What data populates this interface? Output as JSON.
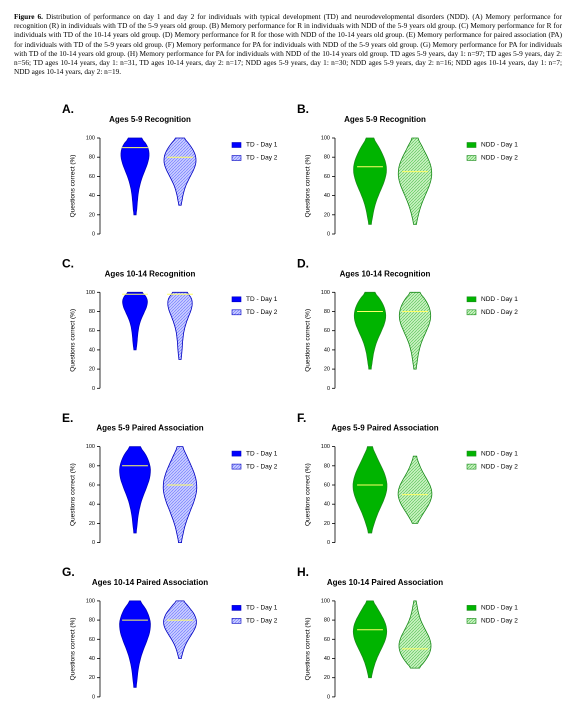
{
  "caption_label": "Figure 6.",
  "caption": "Distribution of performance on day 1 and day 2 for individuals with typical development (TD) and neurodevelopmental disorders (NDD). (A) Memory performance for recognition (R) in individuals with TD of the 5-9 years old group. (B) Memory performance for R in individuals with NDD of the 5-9 years old group. (C) Memory performance for R for individuals with TD of the 10-14 years old group. (D) Memory performance for R for those with NDD of the 10-14 years old group. (E) Memory performance for paired association (PA) for individuals with TD of the 5-9 years old group. (F) Memory performance for PA for individuals with NDD of the 5-9 years old group. (G) Memory performance for PA for individuals with TD of the 10-14 years old group. (H) Memory performance for PA for individuals with NDD of the 10-14 years old group. TD ages 5-9 years, day 1: n=97; TD ages 5-9 years, day 2: n=56; TD ages 10-14 years, day 1: n=31, TD ages 10-14 years, day 2: n=17; NDD ages 5-9 years, day 1: n=30; NDD ages 5-9 years, day 2: n=16; NDD ages 10-14 years, day 1: n=7; NDD ages 10-14 years, day 2: n=19.",
  "chart_data": [
    {
      "panel": "A.",
      "type": "violin",
      "title": "Ages 5-9 Recognition",
      "y_label": "Questions correct (%)",
      "ylim": [
        0,
        100
      ],
      "yticks": [
        0,
        20,
        40,
        60,
        80,
        100
      ],
      "series": [
        {
          "name": "TD - Day 1",
          "color": "#0000ff",
          "min": 20,
          "median": 90,
          "max": 100
        },
        {
          "name": "TD - Day 2",
          "color": "#aab0ff",
          "min": 30,
          "median": 80,
          "max": 100
        }
      ]
    },
    {
      "panel": "B.",
      "type": "violin",
      "title": "Ages 5-9 Recognition",
      "y_label": "Questions correct (%)",
      "ylim": [
        0,
        100
      ],
      "yticks": [
        0,
        20,
        40,
        60,
        80,
        100
      ],
      "series": [
        {
          "name": "NDD - Day 1",
          "color": "#00b400",
          "min": 10,
          "median": 70,
          "max": 100
        },
        {
          "name": "NDD - Day 2",
          "color": "#a8e6a0",
          "min": 10,
          "median": 65,
          "max": 100
        }
      ]
    },
    {
      "panel": "C.",
      "type": "violin",
      "title": "Ages 10-14 Recognition",
      "y_label": "Questions correct (%)",
      "ylim": [
        0,
        100
      ],
      "yticks": [
        0,
        20,
        40,
        60,
        80,
        100
      ],
      "series": [
        {
          "name": "TD - Day 1",
          "color": "#0000ff",
          "min": 40,
          "median": 98,
          "max": 100
        },
        {
          "name": "TD - Day 2",
          "color": "#aab0ff",
          "min": 30,
          "median": 98,
          "max": 100
        }
      ]
    },
    {
      "panel": "D.",
      "type": "violin",
      "title": "Ages 10-14 Recognition",
      "y_label": "Questions correct (%)",
      "ylim": [
        0,
        100
      ],
      "yticks": [
        0,
        20,
        40,
        60,
        80,
        100
      ],
      "series": [
        {
          "name": "NDD - Day 1",
          "color": "#00b400",
          "min": 20,
          "median": 80,
          "max": 100
        },
        {
          "name": "NDD - Day 2",
          "color": "#a8e6a0",
          "min": 20,
          "median": 80,
          "max": 100
        }
      ]
    },
    {
      "panel": "E.",
      "type": "violin",
      "title": "Ages 5-9 Paired Association",
      "y_label": "Questions correct (%)",
      "ylim": [
        0,
        100
      ],
      "yticks": [
        0,
        20,
        40,
        60,
        80,
        100
      ],
      "series": [
        {
          "name": "TD - Day 1",
          "color": "#0000ff",
          "min": 10,
          "median": 80,
          "max": 100
        },
        {
          "name": "TD - Day 2",
          "color": "#aab0ff",
          "min": 0,
          "median": 60,
          "max": 100
        }
      ]
    },
    {
      "panel": "F.",
      "type": "violin",
      "title": "Ages 5-9 Paired Association",
      "y_label": "Questions correct (%)",
      "ylim": [
        0,
        100
      ],
      "yticks": [
        0,
        20,
        40,
        60,
        80,
        100
      ],
      "series": [
        {
          "name": "NDD - Day 1",
          "color": "#00b400",
          "min": 10,
          "median": 60,
          "max": 100
        },
        {
          "name": "NDD - Day 2",
          "color": "#a8e6a0",
          "min": 20,
          "median": 50,
          "max": 90
        }
      ]
    },
    {
      "panel": "G.",
      "type": "violin",
      "title": "Ages 10-14 Paired Association",
      "y_label": "Questions correct (%)",
      "ylim": [
        0,
        100
      ],
      "yticks": [
        0,
        20,
        40,
        60,
        80,
        100
      ],
      "series": [
        {
          "name": "TD - Day 1",
          "color": "#0000ff",
          "min": 10,
          "median": 80,
          "max": 100
        },
        {
          "name": "TD - Day 2",
          "color": "#aab0ff",
          "min": 40,
          "median": 80,
          "max": 100
        }
      ]
    },
    {
      "panel": "H.",
      "type": "violin",
      "title": "Ages 10-14 Paired Association",
      "y_label": "Questions correct (%)",
      "ylim": [
        0,
        100
      ],
      "yticks": [
        0,
        20,
        40,
        60,
        80,
        100
      ],
      "series": [
        {
          "name": "NDD - Day 1",
          "color": "#00b400",
          "min": 20,
          "median": 70,
          "max": 100
        },
        {
          "name": "NDD - Day 2",
          "color": "#a8e6a0",
          "min": 30,
          "median": 50,
          "max": 100
        }
      ]
    }
  ]
}
